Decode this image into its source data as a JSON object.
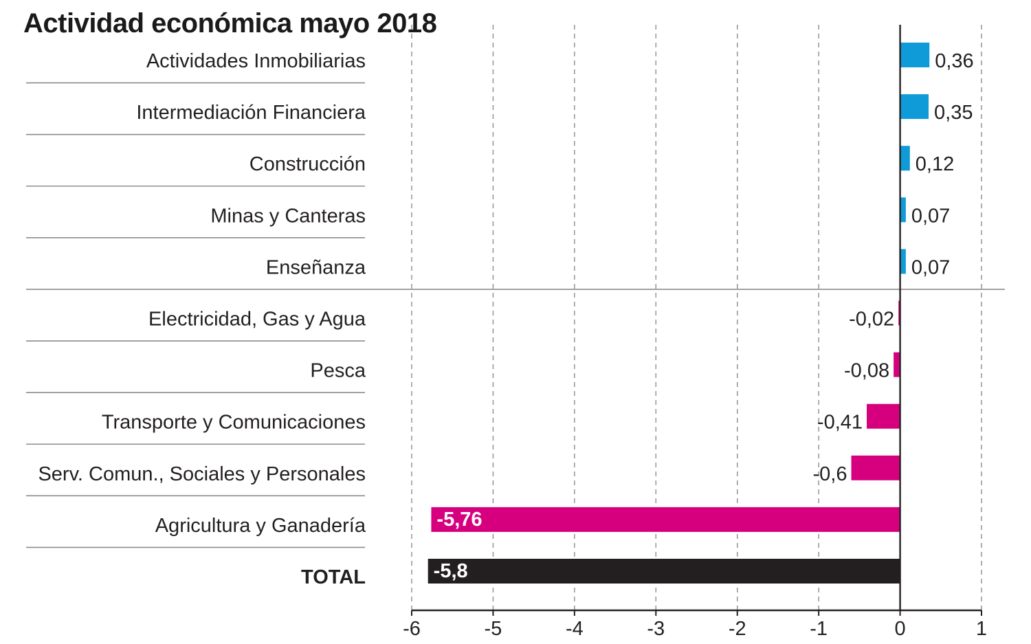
{
  "chart_data": {
    "type": "bar",
    "orientation": "horizontal",
    "title": "Actividad económica mayo 2018",
    "categories": [
      "Actividades Inmobiliarias",
      "Intermediación Financiera",
      "Construcción",
      "Minas y Canteras",
      "Enseñanza",
      "Electricidad, Gas y Agua",
      "Pesca",
      "Transporte y Comunicaciones",
      "Serv. Comun., Sociales y Personales",
      "Agricultura y Ganadería",
      "TOTAL"
    ],
    "values": [
      0.36,
      0.35,
      0.12,
      0.07,
      0.07,
      -0.02,
      -0.08,
      -0.41,
      -0.6,
      -5.76,
      -5.8
    ],
    "value_labels": [
      "0,36",
      "0,35",
      "0,12",
      "0,07",
      "0,07",
      "-0,02",
      "-0,08",
      "-0,41",
      "-0,6",
      "-5,76",
      "-5,8"
    ],
    "xlim": [
      -6,
      1
    ],
    "xticks": [
      -6,
      -5,
      -4,
      -3,
      -2,
      -1,
      0,
      1
    ],
    "xtick_labels": [
      "-6",
      "-5",
      "-4",
      "-3",
      "-2",
      "-1",
      "0",
      "1"
    ],
    "xlabel": "",
    "ylabel": "",
    "grid": "vertical dashed",
    "colors": {
      "positive": "#0f9bd7",
      "negative": "#d6007f",
      "total": "#231f20",
      "text": "#231f20",
      "grid": "#8c8c8c",
      "separator": "#8c8c8c"
    }
  }
}
